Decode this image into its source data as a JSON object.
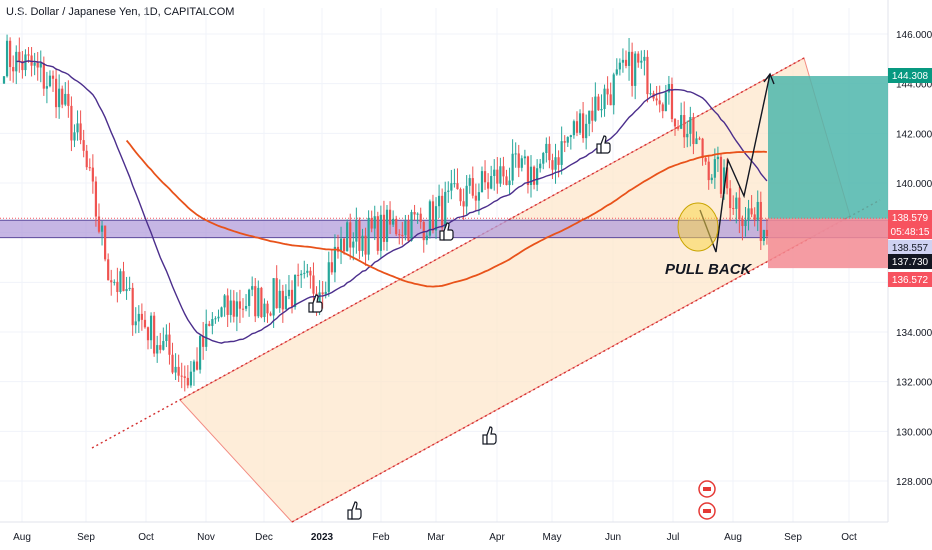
{
  "header": {
    "title": "U.S. Dollar / Japanese Yen, 1D, CAPITALCOM"
  },
  "toolbar": {
    "fullscreen_icon": "fullscreen-icon"
  },
  "chart_data": {
    "type": "candlestick",
    "title": "U.S. Dollar / Japanese Yen, 1D, CAPITALCOM",
    "ylim": [
      126.5,
      147.5
    ],
    "y_ticks": [
      "146.000",
      "144.000",
      "142.000",
      "140.000",
      "138.000",
      "136.000",
      "134.000",
      "132.000",
      "130.000",
      "128.000"
    ],
    "x_ticks": [
      "Aug",
      "Sep",
      "Oct",
      "Nov",
      "Dec",
      "2023",
      "Feb",
      "Mar",
      "Apr",
      "May",
      "Jun",
      "Jul",
      "Aug",
      "Sep",
      "Oct"
    ],
    "price_labels": [
      {
        "text": "144.308",
        "bg": "#089981",
        "fg": "#ffffff"
      },
      {
        "text": "138.579",
        "bg": "#f7525f",
        "fg": "#ffffff"
      },
      {
        "text": "05:48:15",
        "bg": "#f7525f",
        "fg": "#ffffff"
      },
      {
        "text": "138.557",
        "bg": "#cfd2f2",
        "fg": "#131722"
      },
      {
        "text": "137.730",
        "bg": "#131722",
        "fg": "#ffffff"
      },
      {
        "text": "136.572",
        "bg": "#f7525f",
        "fg": "#ffffff"
      }
    ],
    "annotation": "PULL BACK",
    "support_zone": [
      137.8,
      138.5
    ],
    "current_price": 138.579,
    "long_position": {
      "entry": 138.557,
      "target": 144.308,
      "stop": 136.572
    },
    "colors": {
      "up": "#26a69a",
      "down": "#ef5350",
      "ma_fast": "#4b2e8c",
      "ma_slow": "#e8521a",
      "channel_fill": "#fde7cc",
      "zone_fill": "#b39ddb",
      "target_fill": "#4db6ac",
      "stop_fill": "#f38b93"
    },
    "candles_path": [
      [
        146.4,
        143.8
      ],
      [
        143.3,
        146.1
      ],
      [
        146.0,
        141.5
      ],
      [
        140.3,
        142.1
      ],
      [
        138.8,
        134.1
      ],
      [
        133.4,
        136.2
      ],
      [
        136.0,
        130.9
      ],
      [
        131.2,
        133.0
      ],
      [
        133.3,
        135.7
      ],
      [
        136.0,
        134.4
      ],
      [
        134.2,
        136.4
      ],
      [
        136.3,
        134.9
      ],
      [
        135.0,
        137.0
      ],
      [
        137.2,
        138.4
      ],
      [
        138.3,
        137.6
      ],
      [
        137.8,
        138.9
      ],
      [
        138.9,
        138.0
      ],
      [
        137.9,
        140.5
      ],
      [
        140.3,
        139.2
      ],
      [
        139.6,
        141.2
      ],
      [
        141.0,
        139.8
      ],
      [
        140.0,
        142.3
      ],
      [
        142.1,
        143.0
      ],
      [
        142.8,
        144.7
      ],
      [
        144.5,
        145.1
      ],
      [
        145.0,
        142.5
      ],
      [
        142.6,
        141.4
      ],
      [
        141.5,
        139.5
      ],
      [
        139.6,
        138.4
      ],
      [
        138.5,
        137.8
      ]
    ]
  }
}
